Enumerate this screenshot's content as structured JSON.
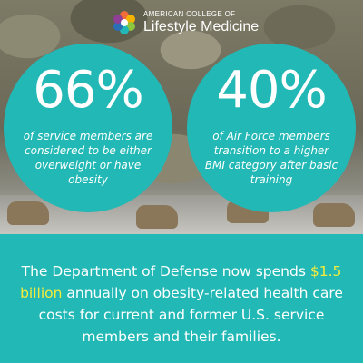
{
  "logo": {
    "line1": "AMERICAN COLLEGE OF",
    "line2": "Lifestyle Medicine",
    "icon": "flower-logo-icon"
  },
  "stats": [
    {
      "value": "66%",
      "caption": "of service members are considered to be either overweight or have obesity"
    },
    {
      "value": "40%",
      "caption": "of Air Force members transition to a higher BMI category after basic training"
    }
  ],
  "banner": {
    "prefix": "The Department of Defense now spends",
    "highlight": "$1.5 billion",
    "suffix": "annually on obesity-related health care costs for current and former U.S. service members and their families."
  },
  "colors": {
    "teal": "#22b8b5",
    "highlight": "#f4ec3a",
    "text": "#ffffff"
  }
}
